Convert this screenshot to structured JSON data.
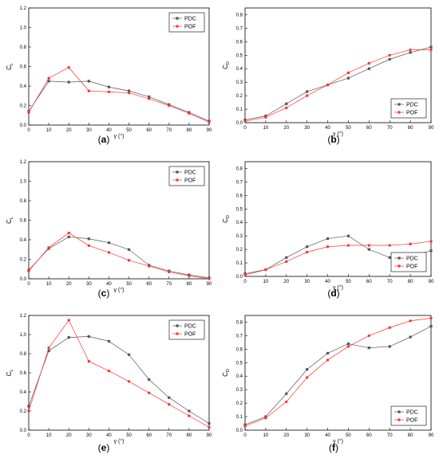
{
  "chart_data": [
    {
      "type": "line",
      "panel_label": "(a)",
      "xlabel": "γ (°)",
      "ylabel": "C_L",
      "x": [
        0,
        10,
        20,
        30,
        40,
        50,
        60,
        70,
        80,
        90
      ],
      "xlim": [
        0,
        90
      ],
      "ylim": [
        0,
        1.2
      ],
      "xticks": [
        "0",
        "10",
        "20",
        "30",
        "40",
        "50",
        "60",
        "70",
        "80",
        "90"
      ],
      "yticks": [
        "0.0",
        "0.2",
        "0.4",
        "0.6",
        "0.8",
        "1.0",
        "1.2"
      ],
      "grid": false,
      "legend_position": "top-right",
      "series": [
        {
          "name": "PDC",
          "color": "#555555",
          "values": [
            0.14,
            0.45,
            0.44,
            0.45,
            0.39,
            0.35,
            0.29,
            0.21,
            0.13,
            0.04
          ]
        },
        {
          "name": "POF",
          "color": "#ff3333",
          "values": [
            0.13,
            0.48,
            0.59,
            0.35,
            0.34,
            0.33,
            0.27,
            0.2,
            0.12,
            0.03
          ]
        }
      ]
    },
    {
      "type": "line",
      "panel_label": "(b)",
      "xlabel": "γ (°)",
      "ylabel": "C_D",
      "x": [
        0,
        10,
        20,
        30,
        40,
        50,
        60,
        70,
        80,
        90
      ],
      "xlim": [
        0,
        90
      ],
      "ylim": [
        0,
        0.85
      ],
      "xticks": [
        "0",
        "10",
        "20",
        "30",
        "40",
        "50",
        "60",
        "70",
        "80",
        "90"
      ],
      "yticks": [
        "0.0",
        "0.1",
        "0.2",
        "0.3",
        "0.4",
        "0.5",
        "0.6",
        "0.7",
        "0.8"
      ],
      "grid": false,
      "legend_position": "bottom-right",
      "series": [
        {
          "name": "PDC",
          "color": "#555555",
          "values": [
            0.02,
            0.05,
            0.14,
            0.23,
            0.28,
            0.33,
            0.4,
            0.47,
            0.52,
            0.56
          ]
        },
        {
          "name": "POF",
          "color": "#ff3333",
          "values": [
            0.01,
            0.04,
            0.11,
            0.2,
            0.28,
            0.37,
            0.44,
            0.5,
            0.54,
            0.54
          ]
        }
      ]
    },
    {
      "type": "line",
      "panel_label": "(c)",
      "xlabel": "γ (°)",
      "ylabel": "C_L",
      "x": [
        0,
        10,
        20,
        30,
        40,
        50,
        60,
        70,
        80,
        90
      ],
      "xlim": [
        0,
        90
      ],
      "ylim": [
        0,
        1.2
      ],
      "xticks": [
        "0",
        "10",
        "20",
        "30",
        "40",
        "50",
        "60",
        "70",
        "80",
        "90"
      ],
      "yticks": [
        "0.0",
        "0.2",
        "0.4",
        "0.6",
        "0.8",
        "1.0",
        "1.2"
      ],
      "grid": false,
      "legend_position": "top-right",
      "series": [
        {
          "name": "PDC",
          "color": "#555555",
          "values": [
            0.09,
            0.31,
            0.43,
            0.41,
            0.37,
            0.3,
            0.14,
            0.08,
            0.04,
            0.01
          ]
        },
        {
          "name": "POF",
          "color": "#ff3333",
          "values": [
            0.08,
            0.32,
            0.47,
            0.34,
            0.27,
            0.19,
            0.13,
            0.07,
            0.03,
            0.0
          ]
        }
      ]
    },
    {
      "type": "line",
      "panel_label": "(d)",
      "xlabel": "γ (°)",
      "ylabel": "C_D",
      "x": [
        0,
        10,
        20,
        30,
        40,
        50,
        60,
        70,
        80,
        90
      ],
      "xlim": [
        0,
        90
      ],
      "ylim": [
        0,
        0.85
      ],
      "xticks": [
        "0",
        "10",
        "20",
        "30",
        "40",
        "50",
        "60",
        "70",
        "80",
        "90"
      ],
      "yticks": [
        "0.0",
        "0.1",
        "0.2",
        "0.3",
        "0.4",
        "0.5",
        "0.6",
        "0.7",
        "0.8"
      ],
      "grid": false,
      "legend_position": "bottom-right",
      "series": [
        {
          "name": "PDC",
          "color": "#555555",
          "values": [
            0.02,
            0.05,
            0.14,
            0.22,
            0.28,
            0.3,
            0.2,
            0.14,
            0.15,
            0.19
          ]
        },
        {
          "name": "POF",
          "color": "#ff3333",
          "values": [
            0.01,
            0.05,
            0.11,
            0.18,
            0.22,
            0.23,
            0.23,
            0.23,
            0.24,
            0.26
          ]
        }
      ]
    },
    {
      "type": "line",
      "panel_label": "(e)",
      "xlabel": "γ (°)",
      "ylabel": "C_L",
      "x": [
        0,
        10,
        20,
        30,
        40,
        50,
        60,
        70,
        80,
        90
      ],
      "xlim": [
        0,
        90
      ],
      "ylim": [
        0,
        1.2
      ],
      "xticks": [
        "0",
        "10",
        "20",
        "30",
        "40",
        "50",
        "60",
        "70",
        "80",
        "90"
      ],
      "yticks": [
        "0.0",
        "0.2",
        "0.4",
        "0.6",
        "0.8",
        "1.0",
        "1.2"
      ],
      "grid": false,
      "legend_position": "top-right",
      "series": [
        {
          "name": "PDC",
          "color": "#555555",
          "values": [
            0.25,
            0.83,
            0.97,
            0.98,
            0.93,
            0.79,
            0.53,
            0.34,
            0.2,
            0.07
          ]
        },
        {
          "name": "POF",
          "color": "#ff3333",
          "values": [
            0.2,
            0.86,
            1.15,
            0.72,
            0.62,
            0.51,
            0.39,
            0.27,
            0.15,
            0.03
          ]
        }
      ]
    },
    {
      "type": "line",
      "panel_label": "(f)",
      "xlabel": "γ (°)",
      "ylabel": "C_D",
      "x": [
        0,
        10,
        20,
        30,
        40,
        50,
        60,
        70,
        80,
        90
      ],
      "xlim": [
        0,
        90
      ],
      "ylim": [
        0,
        0.85
      ],
      "xticks": [
        "0",
        "10",
        "20",
        "30",
        "40",
        "50",
        "60",
        "70",
        "80",
        "90"
      ],
      "yticks": [
        "0.0",
        "0.1",
        "0.2",
        "0.3",
        "0.4",
        "0.5",
        "0.6",
        "0.7",
        "0.8"
      ],
      "grid": false,
      "legend_position": "bottom-right",
      "series": [
        {
          "name": "PDC",
          "color": "#555555",
          "values": [
            0.04,
            0.1,
            0.27,
            0.45,
            0.57,
            0.64,
            0.61,
            0.62,
            0.69,
            0.77
          ]
        },
        {
          "name": "POF",
          "color": "#ff3333",
          "values": [
            0.03,
            0.09,
            0.21,
            0.39,
            0.52,
            0.62,
            0.7,
            0.76,
            0.81,
            0.83
          ]
        }
      ]
    }
  ]
}
